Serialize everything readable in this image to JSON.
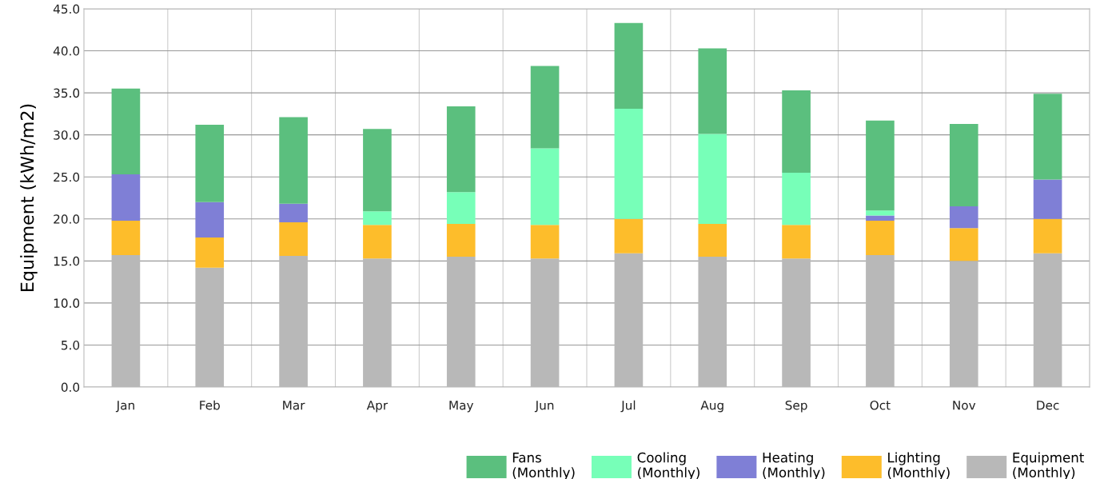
{
  "chart_data": {
    "type": "bar",
    "stacked": true,
    "ylabel": "Equipment (kWh/m2)",
    "categories": [
      "Jan",
      "Feb",
      "Mar",
      "Apr",
      "May",
      "Jun",
      "Jul",
      "Aug",
      "Sep",
      "Oct",
      "Nov",
      "Dec"
    ],
    "series": [
      {
        "name": "Equipment\n(Monthly)",
        "color": "#b8b8b8",
        "values": [
          15.7,
          14.2,
          15.6,
          15.3,
          15.5,
          15.3,
          15.9,
          15.5,
          15.3,
          15.7,
          15.0,
          15.9
        ]
      },
      {
        "name": "Lighting\n(Monthly)",
        "color": "#fdbd2b",
        "values": [
          4.1,
          3.6,
          4.0,
          4.0,
          3.9,
          4.0,
          4.1,
          3.9,
          4.0,
          4.1,
          3.9,
          4.1
        ]
      },
      {
        "name": "Heating\n(Monthly)",
        "color": "#7f7fd6",
        "values": [
          5.5,
          4.2,
          2.2,
          0,
          0,
          0,
          0,
          0,
          0,
          0.6,
          2.6,
          4.7
        ]
      },
      {
        "name": "Cooling\n(Monthly)",
        "color": "#77ffb8",
        "values": [
          0,
          0,
          0,
          1.6,
          3.8,
          9.1,
          13.1,
          10.7,
          6.2,
          0.6,
          0,
          0
        ]
      },
      {
        "name": "Fans\n(Monthly)",
        "color": "#5bbf7e",
        "values": [
          10.2,
          9.2,
          10.3,
          9.8,
          10.2,
          9.8,
          10.2,
          10.2,
          9.8,
          10.7,
          9.8,
          10.2
        ]
      }
    ],
    "ylim": [
      0,
      45
    ],
    "yticks": [
      {
        "value": 0,
        "label": "0.0"
      },
      {
        "value": 5,
        "label": "5.0"
      },
      {
        "value": 10,
        "label": "10.0"
      },
      {
        "value": 15,
        "label": "15.0"
      },
      {
        "value": 20,
        "label": "20.0"
      },
      {
        "value": 25,
        "label": "25.0"
      },
      {
        "value": 30,
        "label": "30.0"
      },
      {
        "value": 35,
        "label": "35.0"
      },
      {
        "value": 40,
        "label": "40.0"
      },
      {
        "value": 45,
        "label": "45.0"
      }
    ],
    "grid": true,
    "legend": "bottom right"
  }
}
